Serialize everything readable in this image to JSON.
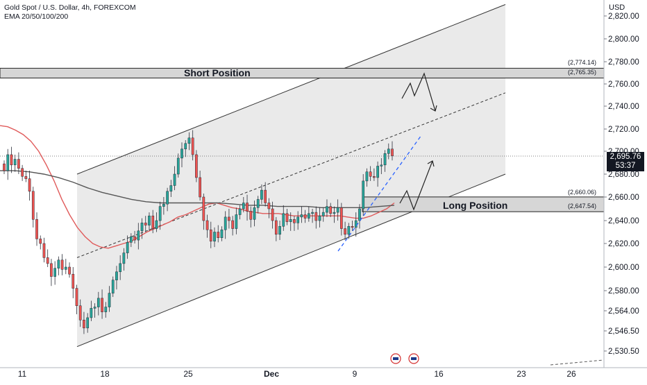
{
  "header": {
    "symbol_line": "Gold Spot / U.S. Dollar, 4h, FOREXCOM",
    "indicator_line": "EMA 20/50/100/200"
  },
  "axis": {
    "currency": "USD"
  },
  "price_tag": {
    "price": "2,695.76",
    "countdown": "53:37"
  },
  "zones": {
    "short": {
      "label": "Short Position",
      "top_price": "(2,774.14)",
      "bottom_price": "(2,765.35)"
    },
    "long": {
      "label": "Long Position",
      "top_price": "(2,660.06)",
      "bottom_price": "(2,647.54)"
    }
  },
  "colors": {
    "bull": "#26a69a",
    "bear": "#ef5350",
    "ema_short": "#e05a5a",
    "ema_long": "#555555",
    "projection_blue": "#2962ff",
    "channel_fill": "#e6e6e6",
    "zone_fill": "#d6d6d6",
    "tag_bg": "#131722"
  },
  "chart_data": {
    "type": "candlestick",
    "timeframe": "4h",
    "y_ticks": [
      "2,820.00",
      "2,800.00",
      "2,780.00",
      "2,760.00",
      "2,740.00",
      "2,720.00",
      "2,700.00",
      "2,680.00",
      "2,660.00",
      "2,640.00",
      "2,620.00",
      "2,600.00",
      "2,580.00",
      "2,564.00",
      "2,546.50",
      "2,530.50"
    ],
    "x_ticks": [
      "11",
      "18",
      "25",
      "Dec",
      "9",
      "16",
      "23",
      "26"
    ],
    "ylim": [
      2520,
      2830
    ],
    "grid": false,
    "closes": [
      2683,
      2697,
      2688,
      2693,
      2685,
      2678,
      2676,
      2665,
      2641,
      2624,
      2620,
      2608,
      2603,
      2592,
      2599,
      2606,
      2598,
      2600,
      2594,
      2582,
      2568,
      2556,
      2549,
      2558,
      2566,
      2567,
      2574,
      2563,
      2567,
      2578,
      2589,
      2596,
      2603,
      2612,
      2621,
      2626,
      2623,
      2631,
      2638,
      2636,
      2644,
      2633,
      2640,
      2652,
      2654,
      2665,
      2670,
      2680,
      2694,
      2702,
      2707,
      2712,
      2697,
      2677,
      2660,
      2640,
      2632,
      2622,
      2630,
      2625,
      2632,
      2643,
      2640,
      2633,
      2645,
      2650,
      2655,
      2648,
      2641,
      2651,
      2658,
      2666,
      2655,
      2650,
      2640,
      2628,
      2635,
      2646,
      2639,
      2641,
      2638,
      2643,
      2645,
      2642,
      2646,
      2647,
      2640,
      2644,
      2647,
      2652,
      2646,
      2647,
      2651,
      2633,
      2628,
      2635,
      2634,
      2640,
      2650,
      2674,
      2682,
      2678,
      2677,
      2687,
      2688,
      2698,
      2702,
      2696
    ],
    "ema_short_values": [
      2723,
      2722,
      2719,
      2715,
      2709,
      2700,
      2688,
      2674,
      2658,
      2645,
      2634,
      2626,
      2620,
      2617,
      2616,
      2618,
      2620,
      2622,
      2626,
      2630,
      2633,
      2636,
      2639,
      2643,
      2645,
      2648,
      2651,
      2654,
      2655,
      2653,
      2651,
      2650,
      2648,
      2647,
      2646,
      2646,
      2646,
      2645,
      2644,
      2644,
      2644,
      2644,
      2644,
      2644,
      2644,
      2643,
      2642,
      2642,
      2644,
      2647,
      2650,
      2655
    ],
    "ema_long_values": [
      2683,
      2683,
      2682,
      2680,
      2677,
      2673,
      2668,
      2664,
      2661,
      2658,
      2656,
      2655,
      2655,
      2655,
      2655,
      2655,
      2654,
      2653,
      2653,
      2652,
      2652,
      2652,
      2651,
      2651,
      2651,
      2651,
      2652,
      2653
    ],
    "channel": {
      "upper_line": {
        "from": [
          2680,
          "Nov 15"
        ],
        "to": [
          2830,
          "Dec 20"
        ]
      },
      "midline": {
        "from": [
          2608,
          "Nov 15"
        ],
        "to": [
          2752,
          "Dec 20"
        ]
      },
      "lower_line": {
        "from": [
          2534,
          "Nov 15"
        ],
        "to": [
          2680,
          "Dec 20"
        ]
      }
    },
    "short_zone": [
      2765.35,
      2774.14
    ],
    "long_zone": [
      2647.54,
      2660.06
    ],
    "current_price": 2695.76
  }
}
